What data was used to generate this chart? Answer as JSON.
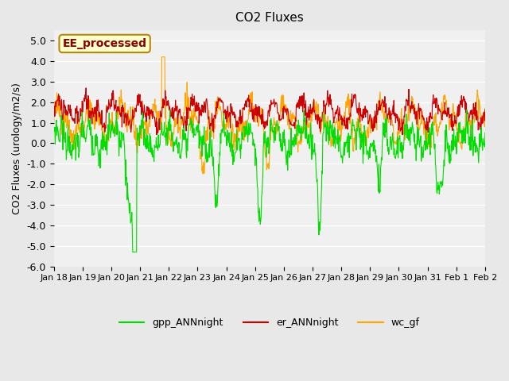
{
  "title": "CO2 Fluxes",
  "ylabel": "CO2 Fluxes (urology/m2/s)",
  "ylim": [
    -6.0,
    5.5
  ],
  "yticks": [
    -6.0,
    -5.0,
    -4.0,
    -3.0,
    -2.0,
    -1.0,
    0.0,
    1.0,
    2.0,
    3.0,
    4.0,
    5.0
  ],
  "bg_color": "#e8e8e8",
  "plot_bg_color": "#f0f0f0",
  "grid_color": "#ffffff",
  "n_points": 1008,
  "annotation_text": "EE_processed",
  "annotation_color": "#8b0000",
  "annotation_bg": "#ffffcc",
  "annotation_border": "#b8860b",
  "line_colors": {
    "gpp": "#00dd00",
    "er": "#cc0000",
    "wc": "#ffa500"
  },
  "legend_labels": [
    "gpp_ANNnight",
    "er_ANNnight",
    "wc_gf"
  ],
  "legend_colors": [
    "#00dd00",
    "#cc0000",
    "#ffa500"
  ],
  "xlabel_ticks": [
    "Jan 18",
    "Jan 19",
    "Jan 20",
    "Jan 21",
    "Jan 22",
    "Jan 23",
    "Jan 24",
    "Jan 25",
    "Jan 26",
    "Jan 27",
    "Jan 28",
    "Jan 29",
    "Jan 30",
    "Jan 31",
    "Feb 1",
    "Feb 2"
  ],
  "n_days": 16
}
